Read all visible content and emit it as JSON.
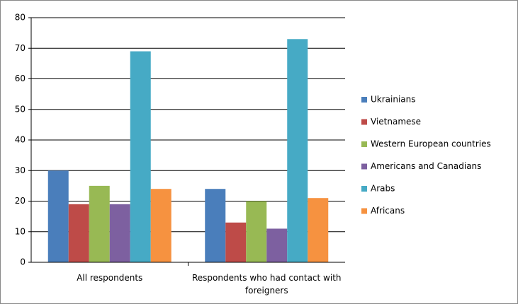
{
  "chart_data": {
    "type": "bar",
    "categories": [
      "All respondents",
      "Respondents who had contact with foreigners"
    ],
    "series": [
      {
        "name": "Ukrainians",
        "color": "#4a7ebb",
        "values": [
          30,
          24
        ]
      },
      {
        "name": "Vietnamese",
        "color": "#be4b48",
        "values": [
          19,
          13
        ]
      },
      {
        "name": "Western European countries",
        "color": "#98b954",
        "values": [
          25,
          20
        ]
      },
      {
        "name": "Americans and Canadians",
        "color": "#7d60a0",
        "values": [
          19,
          11
        ]
      },
      {
        "name": "Arabs",
        "color": "#46aac5",
        "values": [
          69,
          73
        ]
      },
      {
        "name": "Africans",
        "color": "#f69240",
        "values": [
          24,
          21
        ]
      }
    ],
    "ylim": [
      0,
      80
    ],
    "yticks": [
      0,
      10,
      20,
      30,
      40,
      50,
      60,
      70,
      80
    ],
    "grid": true,
    "legend": "right"
  }
}
